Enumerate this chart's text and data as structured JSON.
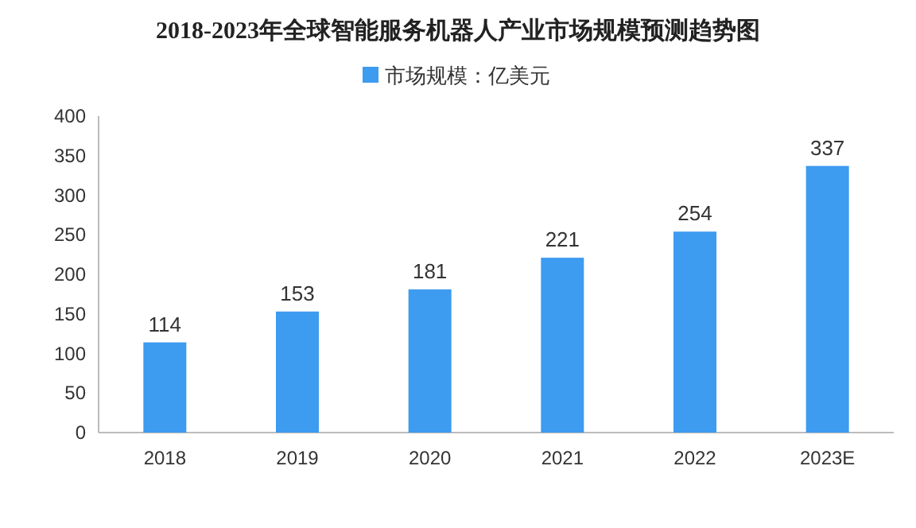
{
  "chart_data": {
    "type": "bar",
    "title": "2018-2023年全球智能服务机器人产业市场规模预测趋势图",
    "categories": [
      "2018",
      "2019",
      "2020",
      "2021",
      "2022",
      "2023E"
    ],
    "series": [
      {
        "name": "市场规模：亿美元",
        "color": "#3d9bf0",
        "values": [
          114,
          153,
          181,
          221,
          254,
          337
        ]
      }
    ],
    "ylim": [
      0,
      400
    ],
    "yticks": [
      0,
      50,
      100,
      150,
      200,
      250,
      300,
      350,
      400
    ],
    "data_labels": true,
    "legend": "top"
  }
}
